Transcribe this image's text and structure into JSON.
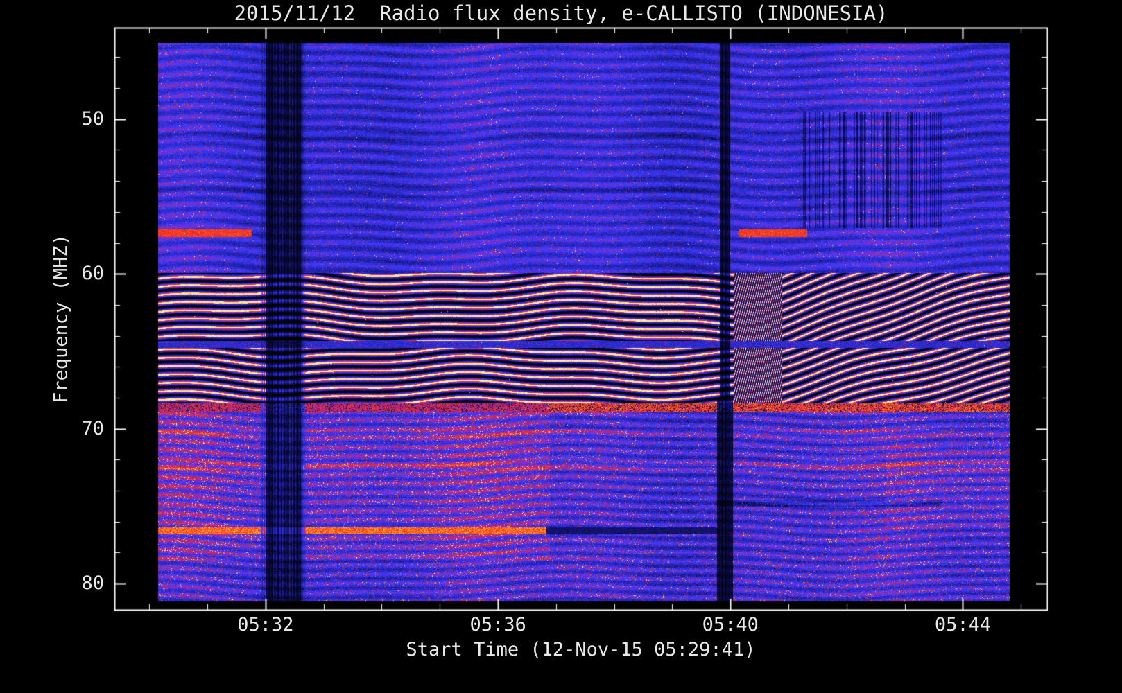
{
  "figure": {
    "background": "#000000",
    "frame_color": "#ffffff",
    "text_color": "#e8e8e8"
  },
  "chart_data": {
    "type": "heatmap",
    "title": "2015/11/12  Radio flux density, e-CALLISTO (INDONESIA)",
    "xlabel": "Start Time (12-Nov-15 05:29:41)",
    "ylabel": "Frequency (MHZ)",
    "start_time": "05:29:41",
    "date": "2015/11/12",
    "instrument": "e-CALLISTO (INDONESIA)",
    "x_ticks": [
      {
        "label": "05:32",
        "minute": 32
      },
      {
        "label": "05:36",
        "minute": 36
      },
      {
        "label": "05:40",
        "minute": 40
      },
      {
        "label": "05:44",
        "minute": 44
      }
    ],
    "x_minor_tick_every_minutes": 1,
    "y_ticks": [
      {
        "label": "50",
        "mhz": 50
      },
      {
        "label": "60",
        "mhz": 60
      },
      {
        "label": "70",
        "mhz": 70
      },
      {
        "label": "80",
        "mhz": 80
      }
    ],
    "y_minor_tick_every_mhz": 2,
    "y_axis_inverted": true,
    "x_axis_range_minutes_after_0500": [
      29.4,
      45.45
    ],
    "y_axis_range_mhz": [
      44.1,
      81.7
    ],
    "data_extent": {
      "time_minutes_after_0500": [
        30.15,
        44.81
      ],
      "freq_mhz": [
        45.07,
        81.1
      ]
    },
    "colormap_stops": [
      [
        0.0,
        "#000000"
      ],
      [
        0.15,
        "#0a0a3c"
      ],
      [
        0.3,
        "#1e1ea0"
      ],
      [
        0.45,
        "#2d2dd7"
      ],
      [
        0.55,
        "#3c3cff"
      ],
      [
        0.63,
        "#6e32dc"
      ],
      [
        0.72,
        "#aa2896"
      ],
      [
        0.8,
        "#d7283c"
      ],
      [
        0.88,
        "#ff3c14"
      ],
      [
        0.95,
        "#ff9628"
      ],
      [
        1.0,
        "#fff0a0"
      ]
    ],
    "background_noise_color": "#2d2dd7",
    "features": [
      {
        "name": "interference-band-1",
        "freq_mhz": [
          59.9,
          64.3
        ],
        "time_minutes": [
          30.15,
          44.81
        ],
        "desc": "wavy black/red/orange fringe pattern across full time range"
      },
      {
        "name": "interference-band-2",
        "freq_mhz": [
          64.75,
          68.3
        ],
        "time_minutes": [
          30.15,
          44.81
        ],
        "desc": "second wavy fringe band, diagonal hatching after 05:40"
      },
      {
        "name": "red-strip",
        "freq_mhz": [
          68.3,
          68.9
        ],
        "time_minutes": [
          30.15,
          44.81
        ],
        "desc": "bright red horizontal strip, strongest after 05:37"
      },
      {
        "name": "bright-red-line",
        "freq_mhz": [
          76.35,
          76.78
        ],
        "time_minutes": [
          30.15,
          36.8
        ],
        "desc": "intense red/orange narrowband line ending near 05:37, dark until 05:40"
      },
      {
        "name": "red-line",
        "freq_mhz": [
          57.1,
          57.6
        ],
        "time_minutes": [
          30.15,
          31.7
        ],
        "desc": "red narrowband segment at left edge, repeats near 05:40-05:41"
      },
      {
        "name": "rfi-dropout",
        "time_minutes": [
          31.9,
          32.6
        ],
        "freq_mhz": [
          45.07,
          81.1
        ],
        "desc": "cluster of dark vertical dropout lines near 05:32, full height"
      },
      {
        "name": "rfi-dropout",
        "time_minutes": [
          39.8,
          40.1
        ],
        "freq_mhz": [
          45.07,
          81.1
        ],
        "desc": "narrow dark vertical dropout near 05:40, full height"
      },
      {
        "name": "dark-streaks",
        "time_minutes": [
          41.1,
          43.6
        ],
        "freq_mhz": [
          49.5,
          57.0
        ],
        "desc": "scattered dark vertical striations upper right"
      },
      {
        "name": "reddish-mottling",
        "time_minutes": [
          30.15,
          36.9
        ],
        "freq_mhz": [
          69.5,
          78.5
        ],
        "desc": "enhanced red mottled emission lower left quadrant"
      }
    ]
  }
}
